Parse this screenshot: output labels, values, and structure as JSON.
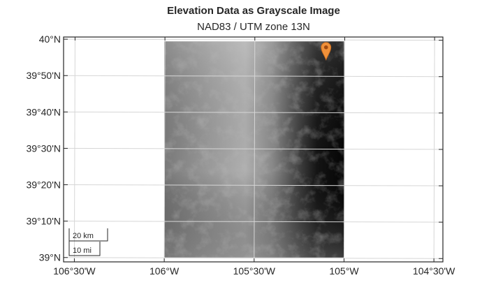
{
  "chart_data": {
    "type": "heatmap",
    "title": "Elevation Data as Grayscale Image",
    "subtitle": "NAD83 / UTM zone 13N",
    "colormap": "gray",
    "grid": true,
    "lon_ticks": [
      -106.5,
      -106.0,
      -105.5,
      -105.0,
      -104.5
    ],
    "lon_tick_labels": [
      "106°30'W",
      "106°W",
      "105°30'W",
      "105°W",
      "104°30'W"
    ],
    "lat_ticks": [
      40.0,
      39.8333,
      39.6667,
      39.5,
      39.3333,
      39.1667,
      39.0
    ],
    "lat_tick_labels": [
      "40°N",
      "39°50'N",
      "39°40'N",
      "39°30'N",
      "39°20'N",
      "39°10'N",
      "39°N"
    ],
    "lon_range": [
      -106.56,
      -104.45
    ],
    "lat_range": [
      38.98,
      40.01
    ],
    "image_extent": {
      "lon": [
        -106.0,
        -105.0
      ],
      "lat": [
        39.0,
        39.99
      ]
    },
    "marker": {
      "lon": -105.1,
      "lat": 39.95,
      "color": "#f0913a"
    },
    "scalebar": {
      "labels": [
        "20 km",
        "10 mi"
      ]
    }
  }
}
